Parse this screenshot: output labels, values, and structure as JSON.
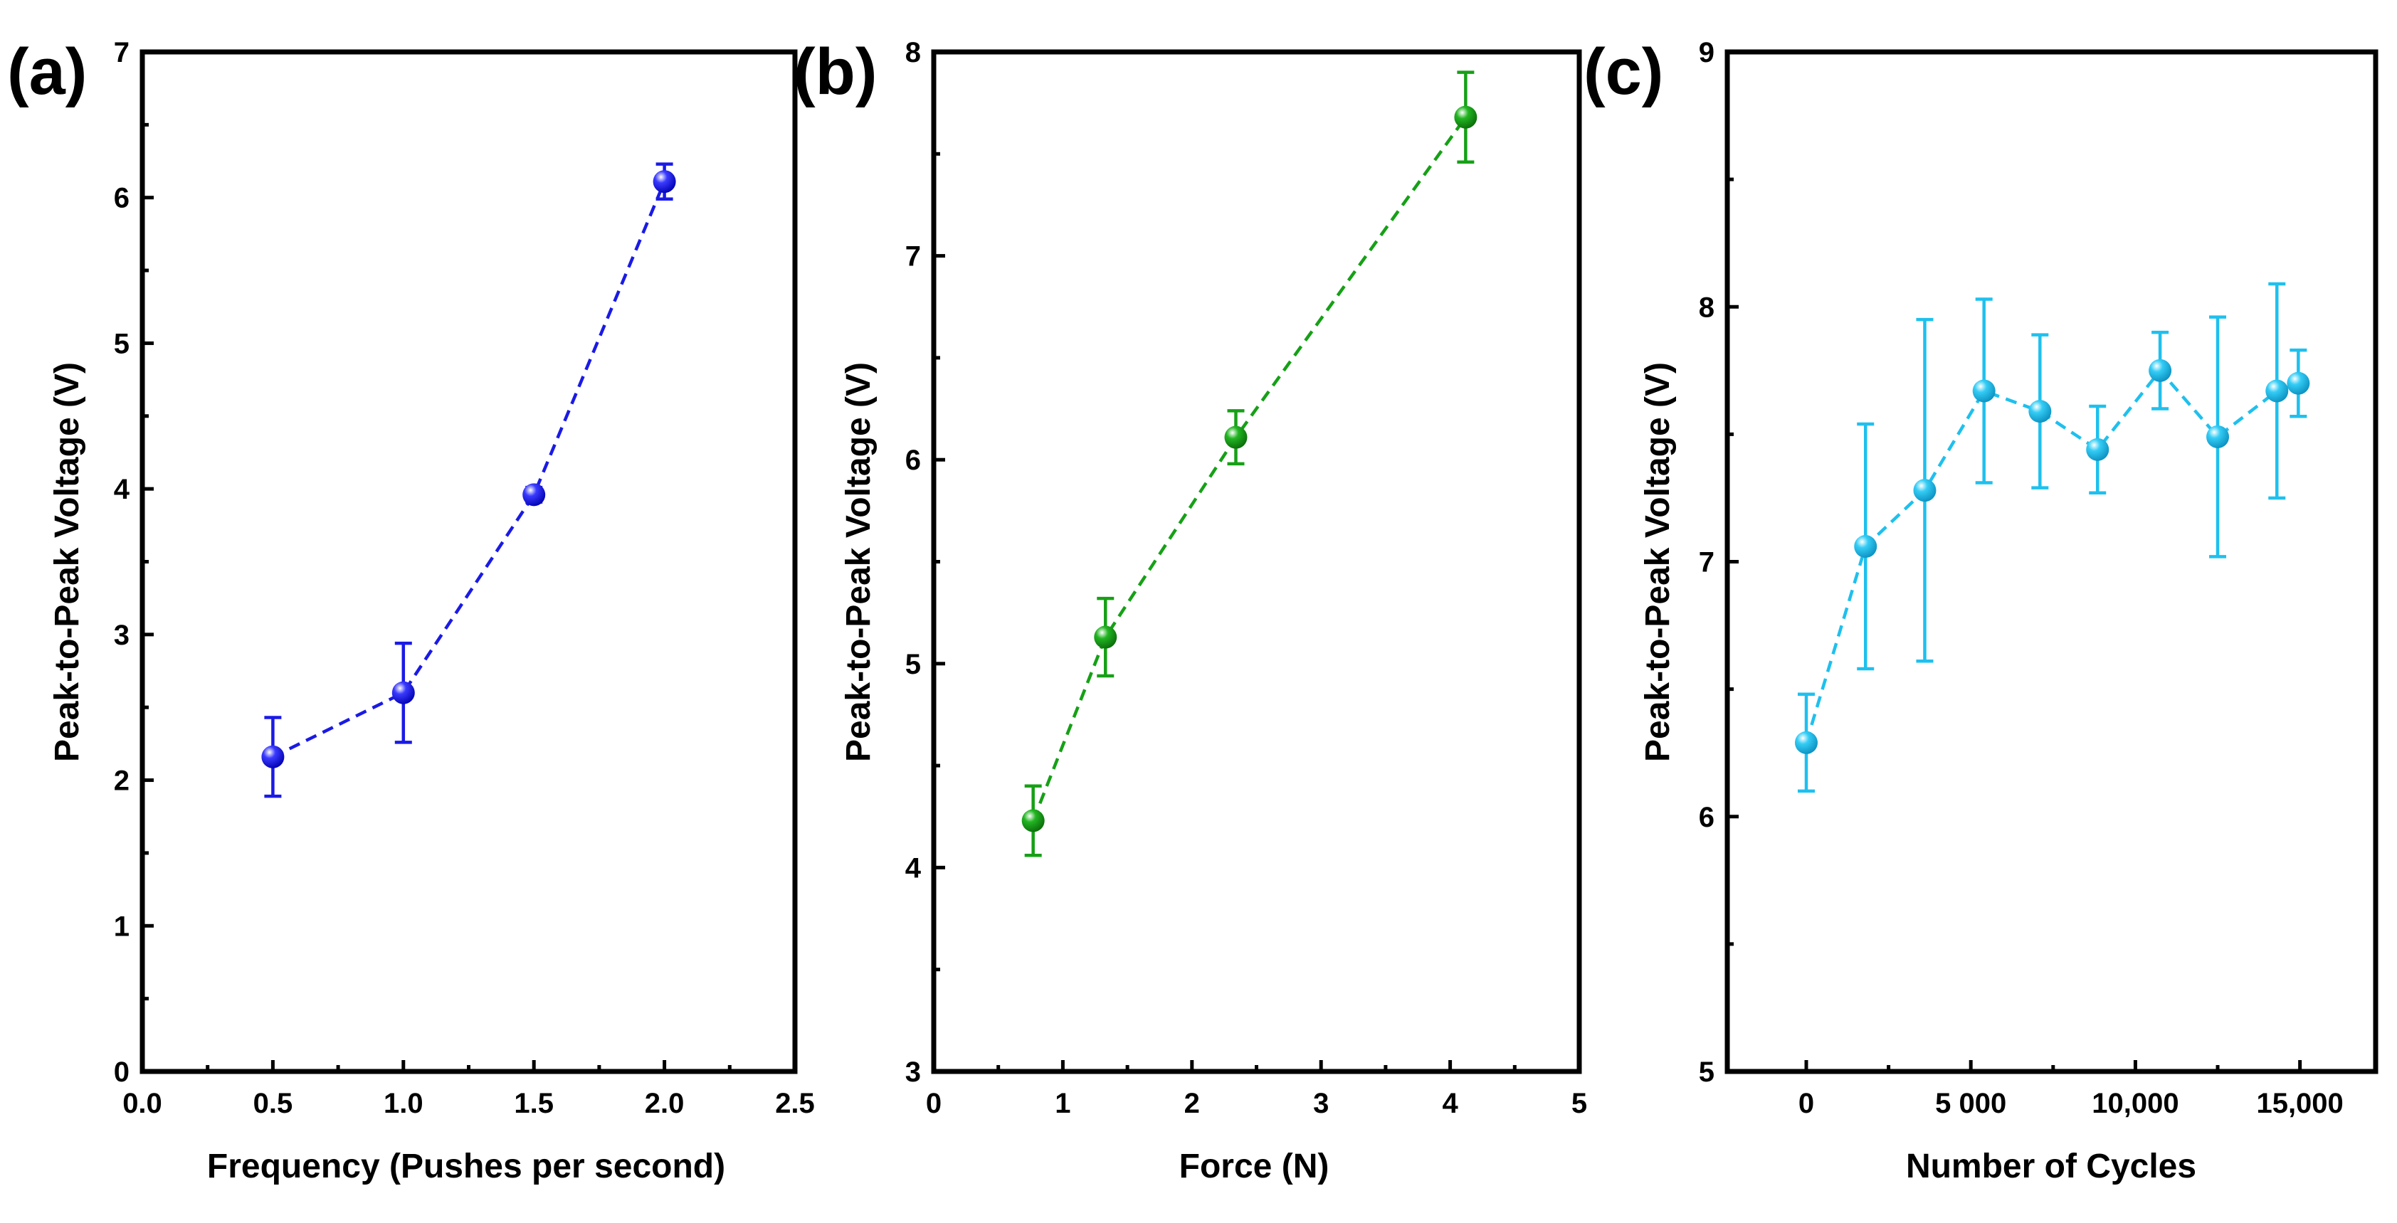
{
  "figure": {
    "description_labels": [
      "(a)",
      "(b)",
      "(c)"
    ]
  },
  "chart_data": [
    {
      "type": "scatter",
      "panel_label": "(a)",
      "title": "",
      "xlabel": "Frequency (Pushes per second)",
      "ylabel": "Peak-to-Peak Voltage (V)",
      "xlim": [
        0.0,
        2.5
      ],
      "ylim": [
        0,
        7
      ],
      "xticks": [
        0.0,
        0.5,
        1.0,
        1.5,
        2.0,
        2.5
      ],
      "xtick_labels": [
        "0.0",
        "0.5",
        "1.0",
        "1.5",
        "2.0",
        "2.5"
      ],
      "yticks": [
        0,
        1,
        2,
        3,
        4,
        5,
        6,
        7
      ],
      "ytick_labels": [
        "0",
        "1",
        "2",
        "3",
        "4",
        "5",
        "6",
        "7"
      ],
      "color": "#1a1ae6",
      "series": [
        {
          "name": "Frequency",
          "x": [
            0.5,
            1.0,
            1.5,
            2.0
          ],
          "y": [
            2.16,
            2.6,
            3.96,
            6.11
          ],
          "err": [
            0.27,
            0.34,
            0.05,
            0.12
          ]
        }
      ]
    },
    {
      "type": "scatter",
      "panel_label": "(b)",
      "title": "",
      "xlabel": "Force (N)",
      "ylabel": "Peak-to-Peak Voltage (V)",
      "xlim": [
        0,
        5
      ],
      "ylim": [
        3,
        8
      ],
      "xticks": [
        0,
        1,
        2,
        3,
        4,
        5
      ],
      "xtick_labels": [
        "0",
        "1",
        "2",
        "3",
        "4",
        "5"
      ],
      "yticks": [
        3,
        4,
        5,
        6,
        7,
        8
      ],
      "ytick_labels": [
        "3",
        "4",
        "5",
        "6",
        "7",
        "8"
      ],
      "color": "#16a016",
      "series": [
        {
          "name": "Force",
          "x": [
            0.77,
            1.33,
            2.34,
            4.12
          ],
          "y": [
            4.23,
            5.13,
            6.11,
            7.68
          ],
          "err": [
            0.17,
            0.19,
            0.13,
            0.22
          ]
        }
      ]
    },
    {
      "type": "scatter",
      "panel_label": "(c)",
      "title": "",
      "xlabel": "Number of Cycles",
      "ylabel": "Peak-to-Peak Voltage (V)",
      "xlim": [
        -2400,
        17300
      ],
      "ylim": [
        5,
        9
      ],
      "xticks": [
        0,
        5000,
        10000,
        15000
      ],
      "xtick_labels": [
        "0",
        "5 000",
        "10,000",
        "15,000"
      ],
      "yticks": [
        5,
        6,
        7,
        8,
        9
      ],
      "ytick_labels": [
        "5",
        "6",
        "7",
        "8",
        "9"
      ],
      "color": "#1ec0ee",
      "series": [
        {
          "name": "Cycles",
          "x": [
            0,
            1800,
            3600,
            5400,
            7100,
            8850,
            10750,
            12500,
            14300,
            14950
          ],
          "y": [
            6.29,
            7.06,
            7.28,
            7.67,
            7.59,
            7.44,
            7.75,
            7.49,
            7.67,
            7.7
          ],
          "err": [
            0.19,
            0.48,
            0.67,
            0.36,
            0.3,
            0.17,
            0.15,
            0.47,
            0.42,
            0.13
          ]
        }
      ]
    }
  ]
}
